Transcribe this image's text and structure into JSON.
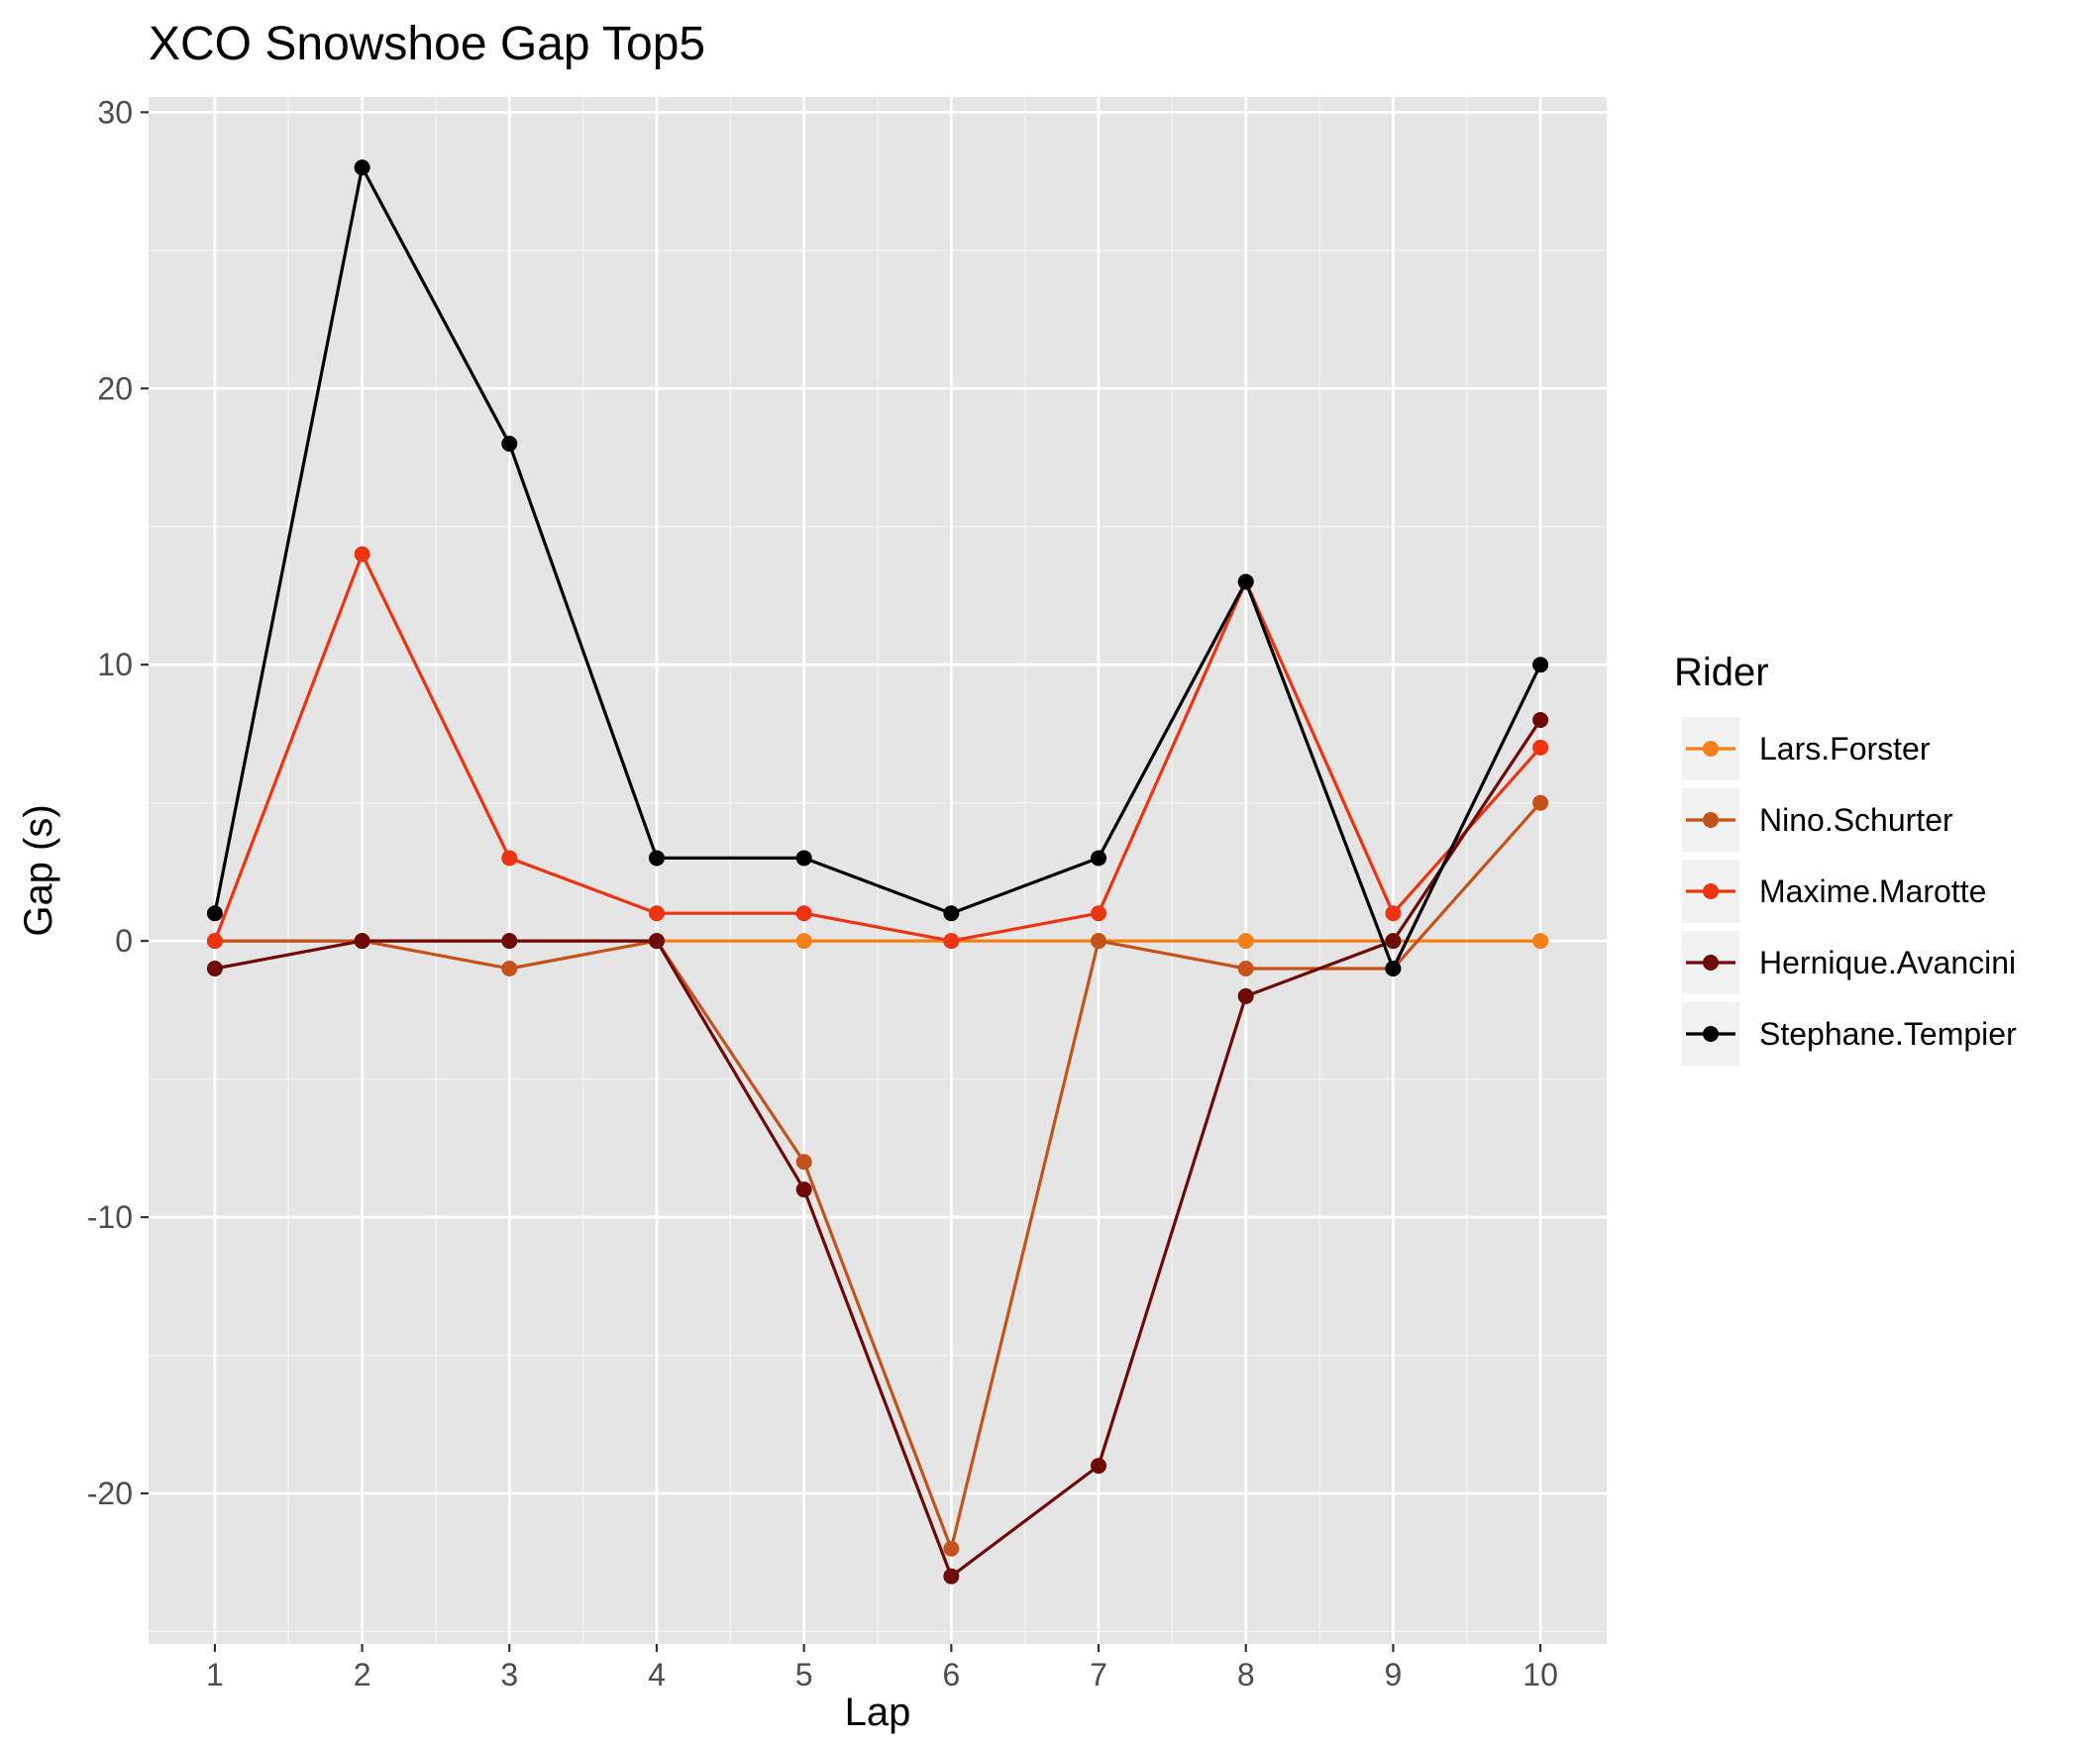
{
  "chart_data": {
    "type": "line",
    "title": "XCO Snowshoe Gap Top5",
    "xlabel": "Lap",
    "ylabel": "Gap (s)",
    "x": [
      1,
      2,
      3,
      4,
      5,
      6,
      7,
      8,
      9,
      10
    ],
    "xticks": [
      "1",
      "2",
      "3",
      "4",
      "5",
      "6",
      "7",
      "8",
      "9",
      "10"
    ],
    "yticks": [
      "-20",
      "-10",
      "0",
      "10",
      "20",
      "30"
    ],
    "xlim": [
      0.55,
      10.45
    ],
    "ylim": [
      -25.45,
      30.55
    ],
    "grid": true,
    "legend": {
      "title": "Rider",
      "position": "right"
    },
    "series": [
      {
        "name": "Lars.Forster",
        "color": "#F57F17",
        "values": [
          0,
          0,
          0,
          0,
          0,
          0,
          0,
          0,
          0,
          0
        ]
      },
      {
        "name": "Nino.Schurter",
        "color": "#C4531B",
        "values": [
          0,
          0,
          -1,
          0,
          -8,
          -22,
          0,
          -1,
          -1,
          5
        ]
      },
      {
        "name": "Maxime.Marotte",
        "color": "#EE3311",
        "values": [
          0,
          14,
          3,
          1,
          1,
          0,
          1,
          13,
          1,
          7
        ]
      },
      {
        "name": "Hernique.Avancini",
        "color": "#6E0A07",
        "values": [
          -1,
          0,
          0,
          0,
          -9,
          -23,
          -19,
          -2,
          0,
          8
        ]
      },
      {
        "name": "Stephane.Tempier",
        "color": "#000000",
        "values": [
          1,
          28,
          18,
          3,
          3,
          1,
          3,
          13,
          -1,
          10
        ]
      }
    ]
  }
}
